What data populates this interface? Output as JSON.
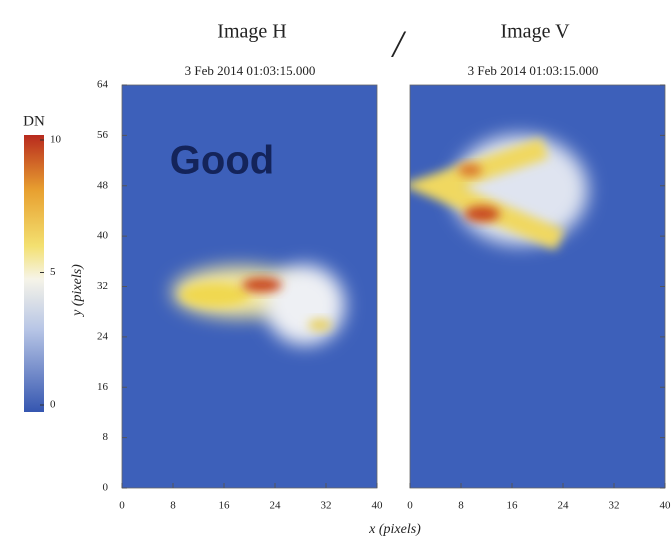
{
  "panels": [
    {
      "title": "Image H",
      "timestamp": "3 Feb 2014 01:03:15.000"
    },
    {
      "title": "Image V",
      "timestamp": "3 Feb 2014 01:03:15.000"
    }
  ],
  "separator": "/",
  "annotation": "Good",
  "x_axis": {
    "label": "x (pixels)",
    "lim": [
      0,
      40
    ],
    "ticks": [
      0,
      8,
      16,
      24,
      32,
      40
    ]
  },
  "y_axis": {
    "label": "y (pixels)",
    "lim": [
      0,
      64
    ],
    "ticks": [
      0,
      8,
      16,
      24,
      32,
      40,
      48,
      56,
      64
    ]
  },
  "colorbar": {
    "label": "DN",
    "lim": [
      0,
      10
    ],
    "ticks": [
      0,
      5,
      10
    ]
  }
}
